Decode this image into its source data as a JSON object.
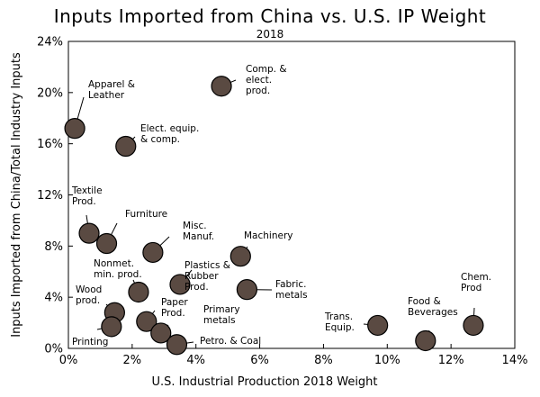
{
  "chart_data": {
    "type": "scatter",
    "title": "Inputs Imported from China vs. U.S. IP Weight",
    "subtitle": "2018",
    "xlabel": "U.S. Industrial Production 2018 Weight",
    "ylabel": "Inputs Imported from China/Total Industry Inputs",
    "xlim": [
      0,
      14
    ],
    "ylim": [
      0,
      24
    ],
    "x_ticks": [
      0,
      2,
      4,
      6,
      8,
      10,
      12,
      14
    ],
    "y_ticks": [
      0,
      4,
      8,
      12,
      16,
      20,
      24
    ],
    "x_tick_labels": [
      "0%",
      "2%",
      "4%",
      "6%",
      "8%",
      "10%",
      "12%",
      "14%"
    ],
    "y_tick_labels": [
      "0%",
      "4%",
      "8%",
      "12%",
      "16%",
      "20%",
      "24%"
    ],
    "grid": false,
    "points": [
      {
        "name": "apparel",
        "label": [
          "Apparel &",
          "Leather"
        ],
        "x": 0.2,
        "y": 17.2
      },
      {
        "name": "elect-equip",
        "label": [
          "Elect. equip.",
          "& comp."
        ],
        "x": 1.8,
        "y": 15.8
      },
      {
        "name": "comp-elect",
        "label": [
          "Comp. &",
          "elect.",
          "prod."
        ],
        "x": 4.8,
        "y": 20.5
      },
      {
        "name": "textile",
        "label": [
          "Textile",
          "Prod."
        ],
        "x": 0.65,
        "y": 9.0
      },
      {
        "name": "furniture",
        "label": [
          "Furniture"
        ],
        "x": 1.2,
        "y": 8.2
      },
      {
        "name": "misc-manuf",
        "label": [
          "Misc.",
          "Manuf."
        ],
        "x": 2.65,
        "y": 7.5
      },
      {
        "name": "machinery",
        "label": [
          "Machinery"
        ],
        "x": 5.4,
        "y": 7.2
      },
      {
        "name": "nonmet-min",
        "label": [
          "Nonmet.",
          "min. prod."
        ],
        "x": 2.2,
        "y": 4.4
      },
      {
        "name": "plastics-rubber",
        "label": [
          "Plastics &",
          "Rubber",
          "Prod."
        ],
        "x": 3.5,
        "y": 5.0
      },
      {
        "name": "fabric-metals",
        "label": [
          "Fabric.",
          "metals"
        ],
        "x": 5.6,
        "y": 4.6
      },
      {
        "name": "wood",
        "label": [
          "Wood",
          "prod."
        ],
        "x": 1.45,
        "y": 2.8
      },
      {
        "name": "printing",
        "label": [
          "Printing"
        ],
        "x": 1.35,
        "y": 1.7
      },
      {
        "name": "paper",
        "label": [
          "Paper",
          "Prod."
        ],
        "x": 2.45,
        "y": 2.1
      },
      {
        "name": "primary-metals",
        "label": [
          "Primary",
          "metals"
        ],
        "x": 2.9,
        "y": 1.2
      },
      {
        "name": "petro-coal",
        "label": [
          "Petro. & Coal"
        ],
        "x": 3.4,
        "y": 0.3
      },
      {
        "name": "trans-equip",
        "label": [
          "Trans.",
          "Equip."
        ],
        "x": 9.7,
        "y": 1.8
      },
      {
        "name": "food-bev",
        "label": [
          "Food &",
          "Beverages"
        ],
        "x": 11.2,
        "y": 0.6
      },
      {
        "name": "chem",
        "label": [
          "Chem.",
          "Prod"
        ],
        "x": 12.7,
        "y": 1.8
      }
    ],
    "marker_color": "#5a4a42",
    "marker_edge_color": "#000000"
  }
}
